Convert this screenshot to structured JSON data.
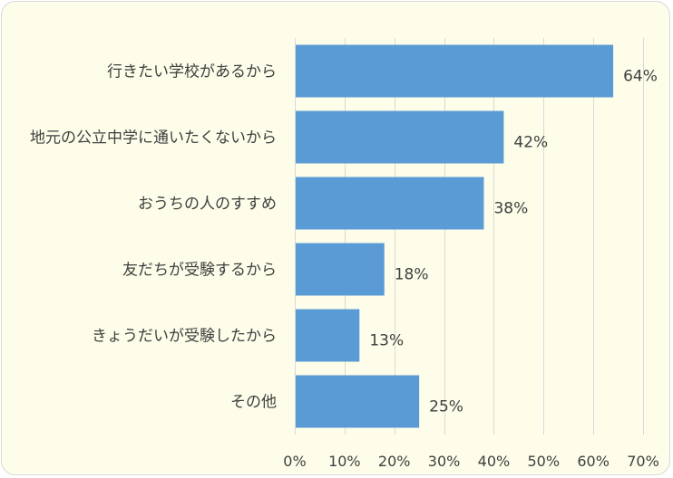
{
  "chart_data": {
    "type": "bar",
    "orientation": "horizontal",
    "categories": [
      "行きたい学校があるから",
      "地元の公立中学に通いたくないから",
      "おうちの人のすすめ",
      "友だちが受験するから",
      "きょうだいが受験したから",
      "その他"
    ],
    "values": [
      64,
      42,
      38,
      18,
      13,
      25
    ],
    "data_labels": [
      "64%",
      "42%",
      "38%",
      "18%",
      "13%",
      "25%"
    ],
    "xlim": [
      0,
      70
    ],
    "x_ticks": [
      0,
      10,
      20,
      30,
      40,
      50,
      60,
      70
    ],
    "x_tick_labels": [
      "0%",
      "10%",
      "20%",
      "30%",
      "40%",
      "50%",
      "60%",
      "70%"
    ],
    "title": "",
    "xlabel": "",
    "ylabel": "",
    "grid": "vertical",
    "legend": "none",
    "colors": {
      "bar": "#5b9bd5",
      "grid": "#d9d9d9",
      "background": "#fdfde9",
      "text": "#404040"
    }
  }
}
